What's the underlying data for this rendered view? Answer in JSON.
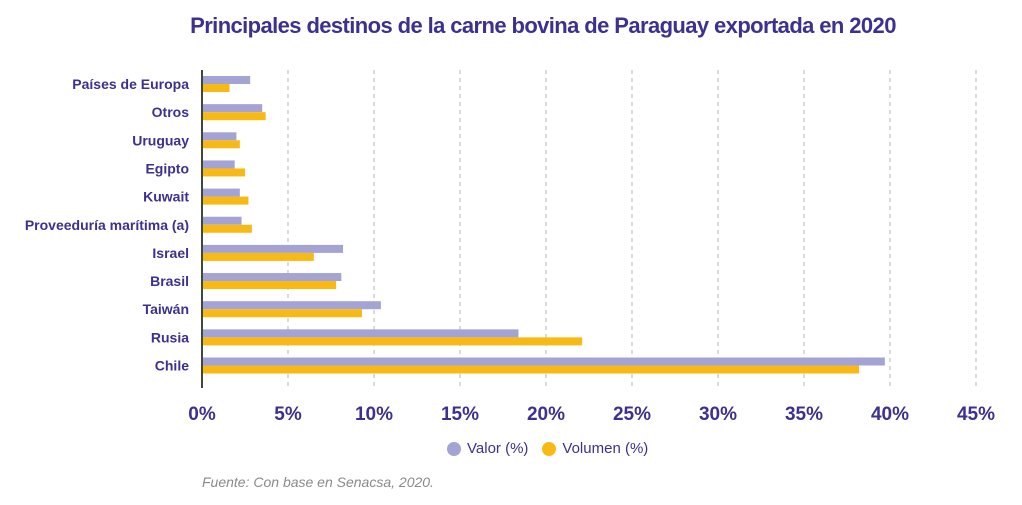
{
  "chart_data": {
    "type": "bar",
    "orientation": "horizontal",
    "title": "Principales destinos de la carne bovina de Paraguay exportada en 2020",
    "xlabel": "",
    "ylabel": "",
    "xlim": [
      0,
      45
    ],
    "x_ticks": [
      0,
      5,
      10,
      15,
      20,
      25,
      30,
      35,
      40,
      45
    ],
    "x_tick_labels": [
      "0%",
      "5%",
      "10%",
      "15%",
      "20%",
      "25%",
      "30%",
      "35%",
      "40%",
      "45%"
    ],
    "grid": "vertical dashed",
    "legend_position": "bottom-center",
    "categories": [
      "Países de Europa",
      "Otros",
      "Uruguay",
      "Egipto",
      "Kuwait",
      "Proveeduría marítima (a)",
      "Israel",
      "Brasil",
      "Taiwán",
      "Rusia",
      "Chile"
    ],
    "series": [
      {
        "name": "Valor (%)",
        "color": "#a3a3d6",
        "values": [
          2.8,
          3.5,
          2.0,
          1.9,
          2.2,
          2.3,
          8.2,
          8.1,
          10.4,
          18.4,
          39.7
        ]
      },
      {
        "name": "Volumen (%)",
        "color": "#f8b914",
        "values": [
          1.6,
          3.7,
          2.2,
          2.5,
          2.7,
          2.9,
          6.5,
          7.8,
          9.3,
          22.1,
          38.2
        ]
      }
    ],
    "source": "Fuente: Con base en Senacsa, 2020."
  },
  "colors": {
    "text": "#3b3190",
    "axis": "#3d4a3a",
    "grid": "#c8c8c8",
    "source": "#8a8a8a"
  }
}
